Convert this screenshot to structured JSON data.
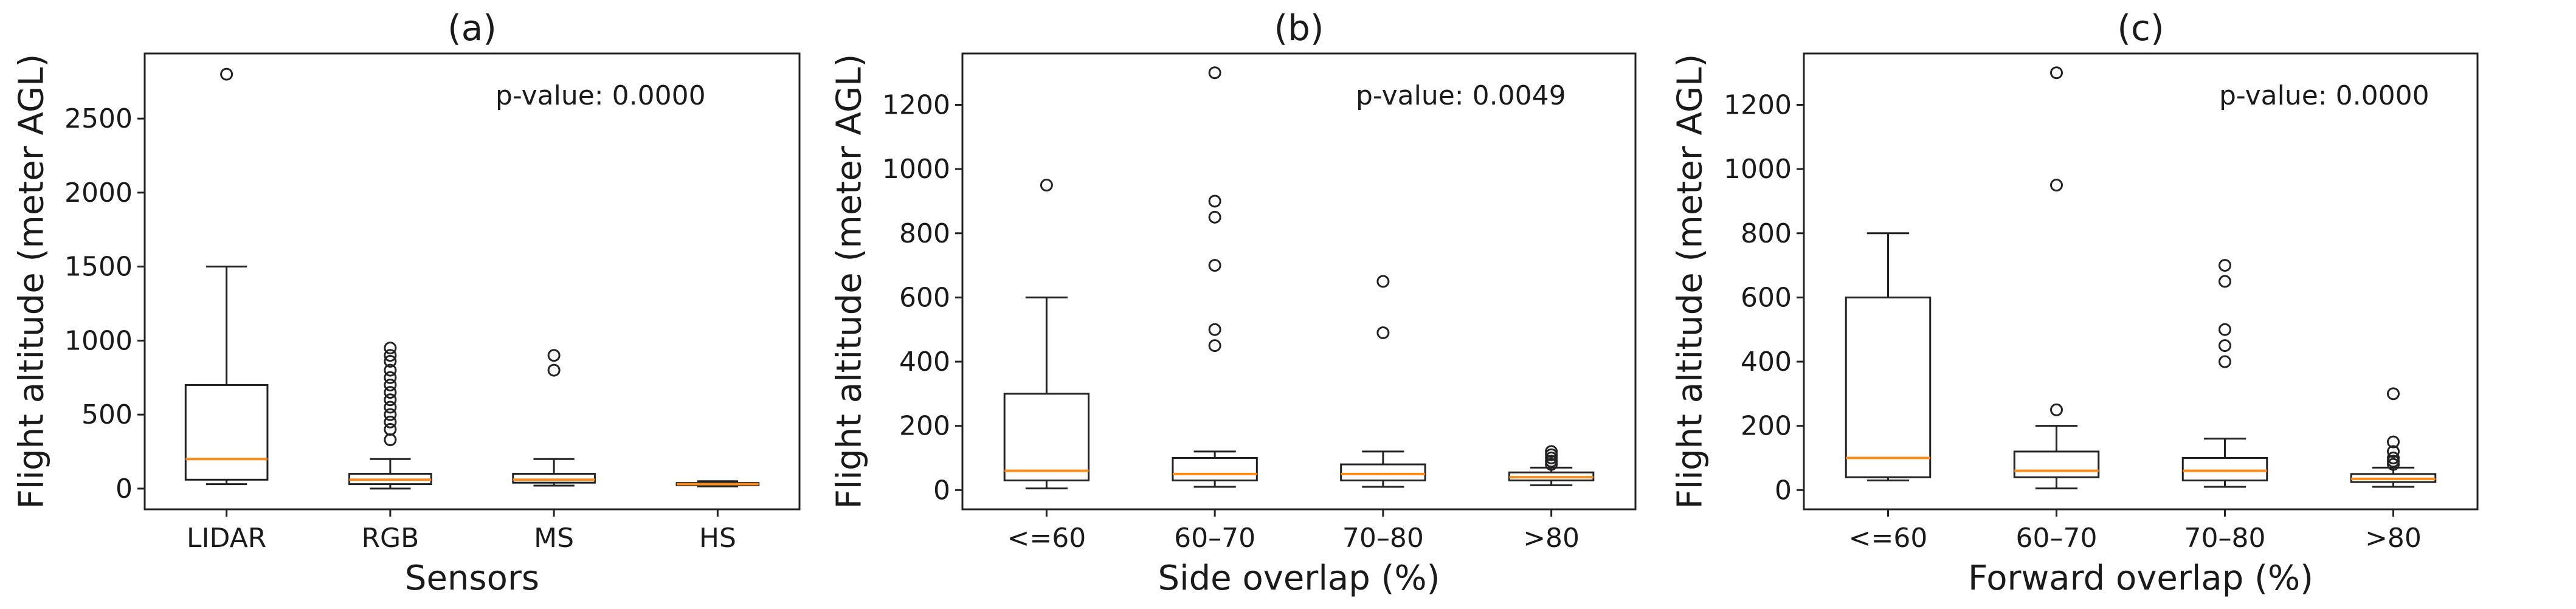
{
  "chart_data": [
    {
      "type": "box",
      "title": "(a)",
      "xlabel": "Sensors",
      "ylabel": "Flight altitude (meter AGL)",
      "annotation": "p-value: 0.0000",
      "ylim": [
        -140,
        2940
      ],
      "yticks": [
        0,
        500,
        1000,
        1500,
        2000,
        2500
      ],
      "categories": [
        "LIDAR",
        "RGB",
        "MS",
        "HS"
      ],
      "boxes": [
        {
          "whislo": 30,
          "q1": 60,
          "med": 200,
          "q3": 700,
          "whishi": 1500,
          "fliers": [
            2800
          ]
        },
        {
          "whislo": 0,
          "q1": 30,
          "med": 60,
          "q3": 100,
          "whishi": 200,
          "fliers": [
            330,
            400,
            450,
            500,
            550,
            600,
            650,
            700,
            750,
            800,
            860,
            900,
            950
          ]
        },
        {
          "whislo": 20,
          "q1": 40,
          "med": 60,
          "q3": 100,
          "whishi": 200,
          "fliers": [
            800,
            900
          ]
        },
        {
          "whislo": 15,
          "q1": 22,
          "med": 30,
          "q3": 38,
          "whishi": 50,
          "fliers": []
        }
      ]
    },
    {
      "type": "box",
      "title": "(b)",
      "xlabel": "Side overlap (%)",
      "ylabel": "Flight altitude (meter AGL)",
      "annotation": "p-value: 0.0049",
      "ylim": [
        -60,
        1360
      ],
      "yticks": [
        0,
        200,
        400,
        600,
        800,
        1000,
        1200
      ],
      "categories": [
        "<=60",
        "60–70",
        "70–80",
        ">80"
      ],
      "boxes": [
        {
          "whislo": 5,
          "q1": 30,
          "med": 60,
          "q3": 300,
          "whishi": 600,
          "fliers": [
            950
          ]
        },
        {
          "whislo": 10,
          "q1": 30,
          "med": 50,
          "q3": 100,
          "whishi": 120,
          "fliers": [
            450,
            500,
            700,
            850,
            900,
            1300
          ]
        },
        {
          "whislo": 10,
          "q1": 30,
          "med": 50,
          "q3": 80,
          "whishi": 120,
          "fliers": [
            490,
            650
          ]
        },
        {
          "whislo": 15,
          "q1": 30,
          "med": 40,
          "q3": 55,
          "whishi": 70,
          "fliers": [
            80,
            90,
            100,
            110,
            120
          ]
        }
      ]
    },
    {
      "type": "box",
      "title": "(c)",
      "xlabel": "Forward overlap (%)",
      "ylabel": "Flight altitude (meter AGL)",
      "annotation": "p-value: 0.0000",
      "ylim": [
        -60,
        1360
      ],
      "yticks": [
        0,
        200,
        400,
        600,
        800,
        1000,
        1200
      ],
      "categories": [
        "<=60",
        "60–70",
        "70–80",
        ">80"
      ],
      "boxes": [
        {
          "whislo": 30,
          "q1": 40,
          "med": 100,
          "q3": 600,
          "whishi": 800,
          "fliers": []
        },
        {
          "whislo": 5,
          "q1": 40,
          "med": 60,
          "q3": 120,
          "whishi": 200,
          "fliers": [
            250,
            950,
            1300
          ]
        },
        {
          "whislo": 10,
          "q1": 30,
          "med": 60,
          "q3": 100,
          "whishi": 160,
          "fliers": [
            400,
            450,
            500,
            650,
            700
          ]
        },
        {
          "whislo": 10,
          "q1": 25,
          "med": 35,
          "q3": 50,
          "whishi": 70,
          "fliers": [
            80,
            90,
            100,
            120,
            150,
            300
          ]
        }
      ]
    }
  ]
}
